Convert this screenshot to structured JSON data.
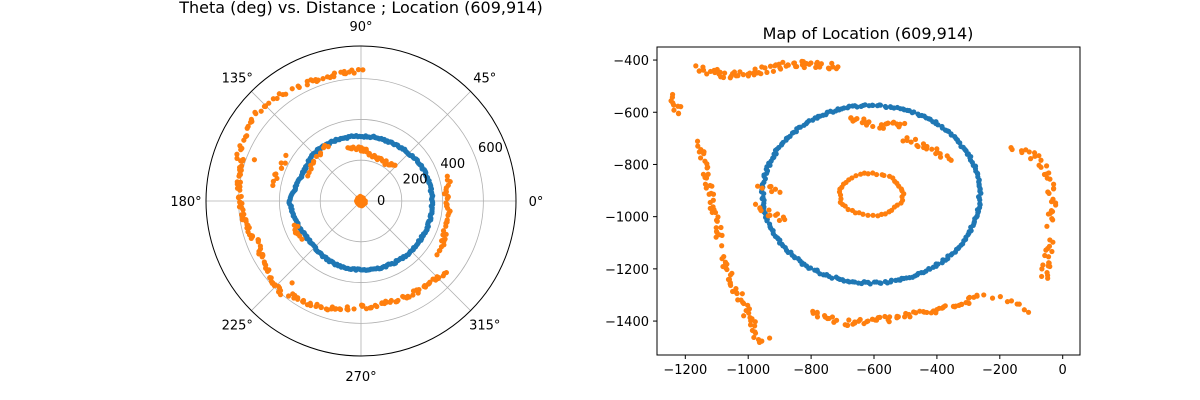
{
  "colors": {
    "blue": "#1f77b4",
    "orange": "#ff7f0e",
    "grid": "#b0b0b0",
    "axis": "#000000"
  },
  "chart_data": [
    {
      "type": "scatter",
      "projection": "polar",
      "title": "Theta (deg) vs. Distance ; Location (609,914)",
      "theta_ticks": [
        0,
        45,
        90,
        135,
        180,
        225,
        270,
        315
      ],
      "theta_tick_labels": [
        "0°",
        "45°",
        "90°",
        "135°",
        "180°",
        "225°",
        "270°",
        "315°"
      ],
      "r_ticks": [
        0,
        200,
        400,
        600
      ],
      "r_tick_labels": [
        "0",
        "200",
        "400",
        "600"
      ],
      "rlim": [
        0,
        760
      ],
      "grid": true,
      "series": [
        {
          "color": "#1f77b4",
          "shape": "ring",
          "radius_profile": [
            [
              0,
              348
            ],
            [
              15,
              346
            ],
            [
              30,
              342
            ],
            [
              45,
              330
            ],
            [
              60,
              322
            ],
            [
              75,
              320
            ],
            [
              90,
              318
            ],
            [
              105,
              320
            ],
            [
              120,
              324
            ],
            [
              135,
              328
            ],
            [
              150,
              315
            ],
            [
              165,
              322
            ],
            [
              180,
              350
            ],
            [
              195,
              336
            ],
            [
              210,
              320
            ],
            [
              225,
              322
            ],
            [
              240,
              330
            ],
            [
              255,
              336
            ],
            [
              270,
              338
            ],
            [
              285,
              340
            ],
            [
              300,
              344
            ],
            [
              315,
              346
            ],
            [
              330,
              348
            ],
            [
              345,
              350
            ],
            [
              360,
              348
            ]
          ],
          "n_points": 260
        },
        {
          "color": "#ff7f0e",
          "shape": "cluster",
          "center_radius": 18,
          "n_points": 40
        },
        {
          "color": "#ff7f0e",
          "shape": "arcs",
          "segments": [
            {
              "from": 45,
              "to": 105,
              "profile": [
                [
                  45,
                  240
                ],
                [
                  60,
                  220
                ],
                [
                  75,
                  230
                ],
                [
                  90,
                  255
                ],
                [
                  105,
                  275
                ]
              ],
              "n_points": 35
            },
            {
              "from": 120,
              "to": 155,
              "profile": [
                [
                  120,
                  320
                ],
                [
                  140,
                  300
                ],
                [
                  155,
                  290
                ]
              ],
              "n_points": 12
            },
            {
              "from": 150,
              "to": 170,
              "profile": [
                [
                  150,
                  420
                ],
                [
                  160,
                  430
                ],
                [
                  170,
                  440
                ]
              ],
              "n_points": 10
            },
            {
              "from": 200,
              "to": 212,
              "profile": [
                [
                  200,
                  340
                ],
                [
                  206,
                  350
                ],
                [
                  212,
                  345
                ]
              ],
              "n_points": 8
            },
            {
              "from": -35,
              "to": 15,
              "profile": [
                [
                  -35,
                  460
                ],
                [
                  -20,
                  440
                ],
                [
                  -5,
                  430
                ],
                [
                  5,
                  420
                ],
                [
                  15,
                  450
                ]
              ],
              "n_points": 35
            },
            {
              "from": -90,
              "to": -40,
              "profile": [
                [
                  -90,
                  520
                ],
                [
                  -75,
                  515
                ],
                [
                  -60,
                  520
                ],
                [
                  -45,
                  530
                ],
                [
                  -40,
                  540
                ]
              ],
              "n_points": 45
            },
            {
              "from": -130,
              "to": -95,
              "profile": [
                [
                  -130,
                  580
                ],
                [
                  -115,
                  560
                ],
                [
                  -100,
                  540
                ],
                [
                  -95,
                  525
                ]
              ],
              "n_points": 30
            },
            {
              "from": -160,
              "to": -130,
              "profile": [
                [
                  -160,
                  540
                ],
                [
                  -145,
                  570
                ],
                [
                  -130,
                  600
                ]
              ],
              "n_points": 30
            },
            {
              "from": 160,
              "to": 200,
              "profile": [
                [
                  160,
                  620
                ],
                [
                  175,
                  600
                ],
                [
                  190,
                  580
                ],
                [
                  200,
                  560
                ]
              ],
              "n_points": 45
            },
            {
              "from": 125,
              "to": 160,
              "profile": [
                [
                  125,
                  650
                ],
                [
                  140,
                  670
                ],
                [
                  160,
                  640
                ]
              ],
              "n_points": 25
            },
            {
              "from": 90,
              "to": 120,
              "profile": [
                [
                  90,
                  640
                ],
                [
                  105,
                  630
                ],
                [
                  120,
                  640
                ]
              ],
              "n_points": 25
            }
          ]
        }
      ]
    },
    {
      "type": "scatter",
      "title": "Map of Location (609,914)",
      "xlabel": "",
      "ylabel": "",
      "xlim": [
        -1290,
        55
      ],
      "ylim": [
        -1530,
        -350
      ],
      "x_ticks": [
        -1200,
        -1000,
        -800,
        -600,
        -400,
        -200,
        0
      ],
      "y_ticks": [
        -400,
        -600,
        -800,
        -1000,
        -1200,
        -1400
      ],
      "grid": false,
      "series": [
        {
          "color": "#1f77b4",
          "shape": "ellipse",
          "center": [
            -609,
            -914
          ],
          "radii": [
            345,
            340
          ],
          "n_points": 260
        },
        {
          "color": "#ff7f0e",
          "shape": "ellipse",
          "center": [
            -609,
            -914
          ],
          "radii": [
            100,
            80
          ],
          "n_points": 45
        },
        {
          "color": "#ff7f0e",
          "shape": "polylines",
          "paths": [
            {
              "points": [
                [
                  -1160,
                  -430
                ],
                [
                  -1060,
                  -460
                ],
                [
                  -960,
                  -440
                ],
                [
                  -860,
                  -415
                ],
                [
                  -770,
                  -420
                ],
                [
                  -720,
                  -425
                ]
              ],
              "n_points": 70
            },
            {
              "points": [
                [
                  -1240,
                  -540
                ],
                [
                  -1220,
                  -600
                ]
              ],
              "n_points": 10
            },
            {
              "points": [
                [
                  -1150,
                  -720
                ],
                [
                  -1140,
                  -820
                ],
                [
                  -1120,
                  -920
                ],
                [
                  -1100,
                  -1020
                ],
                [
                  -1090,
                  -1100
                ]
              ],
              "n_points": 40
            },
            {
              "points": [
                [
                  -1080,
                  -1150
                ],
                [
                  -1050,
                  -1250
                ],
                [
                  -1020,
                  -1330
                ],
                [
                  -990,
                  -1400
                ],
                [
                  -970,
                  -1480
                ],
                [
                  -940,
                  -1470
                ]
              ],
              "n_points": 45
            },
            {
              "points": [
                [
                  -980,
                  -960
                ],
                [
                  -880,
                  -1020
                ]
              ],
              "n_points": 12
            },
            {
              "points": [
                [
                  -960,
                  -890
                ],
                [
                  -900,
                  -895
                ]
              ],
              "n_points": 8
            },
            {
              "points": [
                [
                  -800,
                  -1360
                ],
                [
                  -700,
                  -1410
                ],
                [
                  -600,
                  -1400
                ],
                [
                  -500,
                  -1380
                ],
                [
                  -400,
                  -1360
                ],
                [
                  -300,
                  -1320
                ],
                [
                  -260,
                  -1290
                ]
              ],
              "n_points": 70
            },
            {
              "points": [
                [
                  -680,
                  -620
                ],
                [
                  -600,
                  -650
                ],
                [
                  -500,
                  -650
                ]
              ],
              "n_points": 25
            },
            {
              "points": [
                [
                  -500,
                  -700
                ],
                [
                  -420,
                  -740
                ],
                [
                  -360,
                  -790
                ]
              ],
              "n_points": 20
            },
            {
              "points": [
                [
                  -160,
                  -740
                ],
                [
                  -80,
                  -770
                ],
                [
                  -40,
                  -850
                ],
                [
                  -30,
                  -950
                ],
                [
                  -40,
                  -1030
                ]
              ],
              "n_points": 35
            },
            {
              "points": [
                [
                  -40,
                  -1100
                ],
                [
                  -50,
                  -1180
                ],
                [
                  -60,
                  -1240
                ]
              ],
              "n_points": 18
            },
            {
              "points": [
                [
                  -100,
                  -1370
                ],
                [
                  -150,
                  -1330
                ],
                [
                  -220,
                  -1310
                ]
              ],
              "n_points": 8
            }
          ]
        }
      ]
    }
  ]
}
